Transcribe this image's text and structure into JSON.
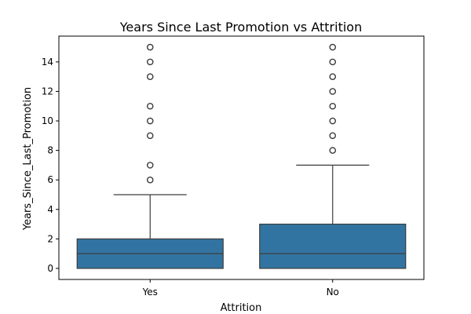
{
  "chart_data": {
    "type": "box",
    "title": "Years Since Last Promotion vs Attrition",
    "xlabel": "Attrition",
    "ylabel": "Years_Since_Last_Promotion",
    "categories": [
      "Yes",
      "No"
    ],
    "ylim": [
      -0.75,
      15.75
    ],
    "yticks": [
      0,
      2,
      4,
      6,
      8,
      10,
      12,
      14
    ],
    "grid": false,
    "box_color": "#3274a1",
    "line_color": "#3d3d3d",
    "boxes": [
      {
        "category": "Yes",
        "min": 0,
        "q1": 0,
        "median": 1,
        "q3": 2,
        "whisker_high": 5,
        "outliers": [
          6,
          7,
          9,
          10,
          11,
          13,
          14,
          15
        ]
      },
      {
        "category": "No",
        "min": 0,
        "q1": 0,
        "median": 1,
        "q3": 3,
        "whisker_high": 7,
        "outliers": [
          8,
          9,
          10,
          11,
          12,
          13,
          14,
          15
        ]
      }
    ]
  }
}
